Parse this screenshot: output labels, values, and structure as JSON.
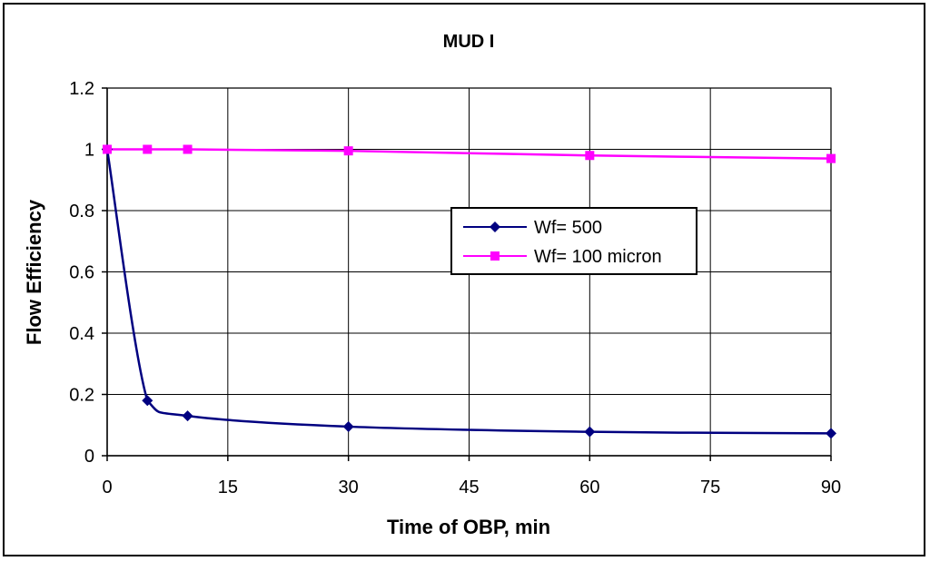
{
  "chart_data": {
    "type": "line",
    "title": "MUD I",
    "xlabel": "Time of OBP, min",
    "ylabel": "Flow Efficiency",
    "xlim": [
      0,
      90
    ],
    "ylim": [
      0,
      1.2
    ],
    "x_ticks": [
      0,
      15,
      30,
      45,
      60,
      75,
      90
    ],
    "y_ticks": [
      0,
      0.2,
      0.4,
      0.6,
      0.8,
      1,
      1.2
    ],
    "x_tick_labels": [
      "0",
      "15",
      "30",
      "45",
      "60",
      "75",
      "90"
    ],
    "y_tick_labels": [
      "0",
      "0.2",
      "0.4",
      "0.6",
      "0.8",
      "1",
      "1.2"
    ],
    "grid": true,
    "legend_position": "center-right",
    "series": [
      {
        "name": "Wf= 500",
        "color": "#000080",
        "marker": "diamond",
        "x": [
          0,
          5,
          10,
          30,
          60,
          90
        ],
        "y": [
          1.0,
          0.18,
          0.13,
          0.095,
          0.078,
          0.073
        ]
      },
      {
        "name": "Wf= 100 micron",
        "color": "#FF00FF",
        "marker": "square",
        "x": [
          0,
          5,
          10,
          30,
          60,
          90
        ],
        "y": [
          1.0,
          1.0,
          1.0,
          0.995,
          0.98,
          0.97
        ]
      }
    ]
  }
}
